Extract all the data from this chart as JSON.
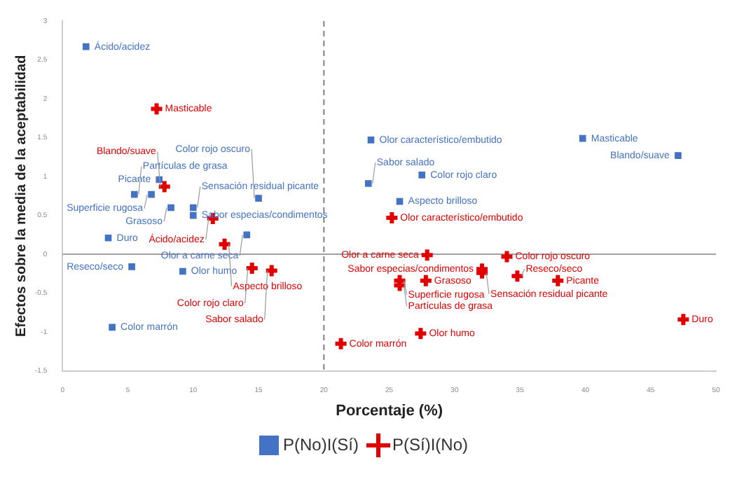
{
  "chart_data": {
    "type": "scatter",
    "xlabel": "Porcentaje (%)",
    "ylabel": "Efectos sobre la media de la aceptabilidad",
    "xlim": [
      0,
      50
    ],
    "xticks": [
      0,
      5,
      10,
      15,
      20,
      25,
      30,
      35,
      40,
      45,
      50
    ],
    "ylim": [
      -1.5,
      3
    ],
    "yticks": [
      -1.5,
      -1,
      -0.5,
      0,
      0.5,
      1,
      1.5,
      2,
      2.5,
      3
    ],
    "grid": false,
    "legend": "bottom",
    "ref_lines": [
      {
        "axis": "x",
        "value": 20,
        "color": "#808080",
        "line_style": "dashed"
      },
      {
        "axis": "y",
        "value": 0,
        "color": "#a0a0a0",
        "line_style": "solid"
      }
    ],
    "series": [
      {
        "name": "P(No)I(Sí)",
        "color": "#4472c4",
        "marker": "square",
        "x": [
          1.8,
          7.4,
          6.8,
          5.5,
          8.3,
          10.0,
          10.0,
          15.0,
          3.5,
          14.1,
          5.3,
          9.2,
          3.8,
          23.6,
          39.8,
          47.1,
          23.4,
          27.5,
          25.8
        ],
        "values": [
          2.67,
          0.96,
          0.77,
          0.77,
          0.6,
          0.6,
          0.5,
          0.72,
          0.21,
          0.25,
          -0.16,
          -0.22,
          -0.94,
          1.47,
          1.49,
          1.27,
          0.91,
          1.02,
          0.68
        ]
      },
      {
        "name": "P(Sí)I(No)",
        "color": "#e00000",
        "marker": "cross",
        "x": [
          7.2,
          7.8,
          11.5,
          12.4,
          14.5,
          16.0,
          21.3,
          25.2,
          27.9,
          34.0,
          25.8,
          27.8,
          25.8,
          32.1,
          32.1,
          34.8,
          37.9,
          47.5,
          27.4
        ],
        "values": [
          1.87,
          0.87,
          0.46,
          0.13,
          -0.18,
          -0.21,
          -1.15,
          0.47,
          -0.01,
          -0.03,
          -0.34,
          -0.34,
          -0.4,
          -0.19,
          -0.24,
          -0.28,
          -0.34,
          -0.84,
          -1.02
        ]
      }
    ],
    "annotations": [
      {
        "text": "Ácido/acidez",
        "x": 1.8,
        "y": 2.67
      },
      {
        "text": "Picante",
        "x": 7.4,
        "y": 0.96
      },
      {
        "text": "Superficie rugosa",
        "x": 6.8,
        "y": 0.77
      },
      {
        "text": "Partículas de grasa",
        "x": 5.5,
        "y": 0.77
      },
      {
        "text": "Grasoso",
        "x": 8.3,
        "y": 0.6
      },
      {
        "text": "Sensación residual picante",
        "x": 10.0,
        "y": 0.6
      },
      {
        "text": "Sabor especias/condimentos",
        "x": 10.0,
        "y": 0.5
      },
      {
        "text": "Color rojo oscuro",
        "x": 15.0,
        "y": 0.72
      },
      {
        "text": "Duro",
        "x": 3.5,
        "y": 0.21
      },
      {
        "text": "Olor a carne seca",
        "x": 14.1,
        "y": 0.25
      },
      {
        "text": "Reseco/seco",
        "x": 5.3,
        "y": -0.16
      },
      {
        "text": "Olor humo",
        "x": 9.2,
        "y": -0.22
      },
      {
        "text": "Color marrón",
        "x": 3.8,
        "y": -0.94
      },
      {
        "text": "Olor característico/embutido",
        "x": 23.6,
        "y": 1.47
      },
      {
        "text": "Masticable",
        "x": 39.8,
        "y": 1.49
      },
      {
        "text": "Blando/suave",
        "x": 47.1,
        "y": 1.27
      },
      {
        "text": "Sabor salado",
        "x": 23.4,
        "y": 0.91
      },
      {
        "text": "Color rojo claro",
        "x": 27.5,
        "y": 1.02
      },
      {
        "text": "Aspecto brilloso",
        "x": 25.8,
        "y": 0.68
      },
      {
        "text": "Masticable",
        "x": 7.2,
        "y": 1.87
      },
      {
        "text": "Blando/suave",
        "x": 7.8,
        "y": 0.87
      },
      {
        "text": "Ácido/acidez",
        "x": 11.5,
        "y": 0.46
      },
      {
        "text": "Aspecto brilloso",
        "x": 12.4,
        "y": 0.13
      },
      {
        "text": "Color rojo claro",
        "x": 14.5,
        "y": -0.18
      },
      {
        "text": "Sabor salado",
        "x": 16.0,
        "y": -0.21
      },
      {
        "text": "Color marrón",
        "x": 21.3,
        "y": -1.15
      },
      {
        "text": "Olor característico/embutido",
        "x": 25.2,
        "y": 0.47
      },
      {
        "text": "Olor a carne seca",
        "x": 27.9,
        "y": -0.01
      },
      {
        "text": "Color rojo oscuro",
        "x": 34.0,
        "y": -0.03
      },
      {
        "text": "Superficie rugosa",
        "x": 25.8,
        "y": -0.34
      },
      {
        "text": "Grasoso",
        "x": 27.8,
        "y": -0.34
      },
      {
        "text": "Partículas de grasa",
        "x": 25.8,
        "y": -0.4
      },
      {
        "text": "Sabor especias/condimentos",
        "x": 32.1,
        "y": -0.19
      },
      {
        "text": "Sensación residual picante",
        "x": 32.1,
        "y": -0.24
      },
      {
        "text": "Reseco/seco",
        "x": 34.8,
        "y": -0.28
      },
      {
        "text": "Picante",
        "x": 37.9,
        "y": -0.34
      },
      {
        "text": "Duro",
        "x": 47.5,
        "y": -0.84
      },
      {
        "text": "Olor humo",
        "x": 27.4,
        "y": -1.02
      }
    ]
  }
}
